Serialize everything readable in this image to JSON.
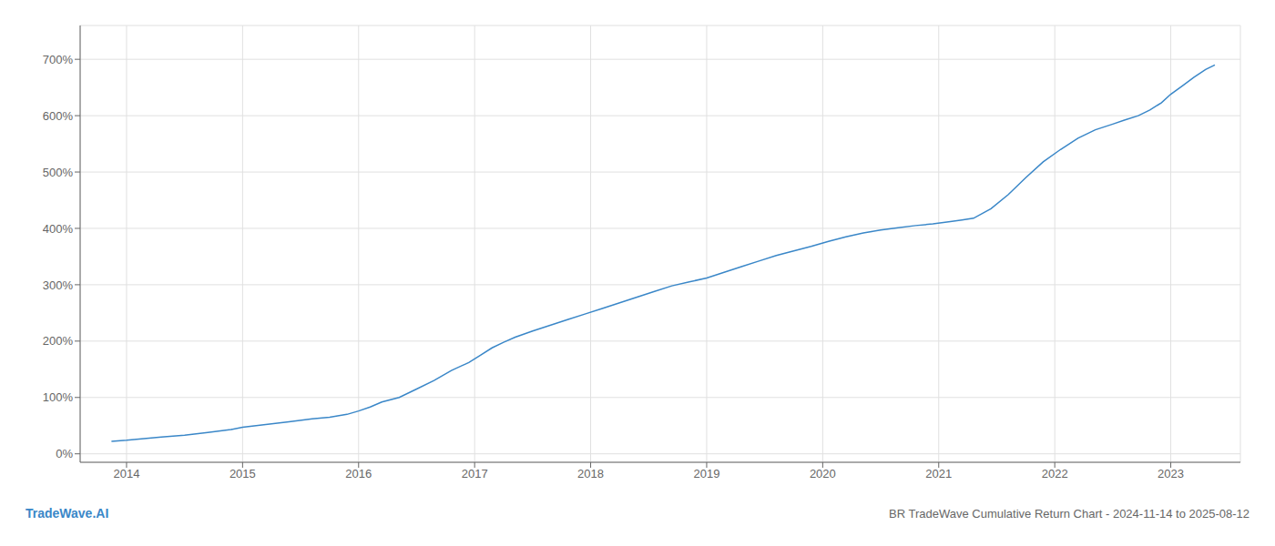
{
  "chart_data": {
    "type": "line",
    "title": "BR TradeWave Cumulative Return Chart - 2024-11-14 to 2025-08-12",
    "annotations": [
      {
        "text": "TradeWave.AI",
        "color": "#3a87c8"
      }
    ],
    "color": "#3a87c8",
    "grid": true,
    "xlim": [
      2013.6,
      2023.6
    ],
    "ylim": [
      -15,
      760
    ],
    "xticks": [
      2014,
      2015,
      2016,
      2017,
      2018,
      2019,
      2020,
      2021,
      2022,
      2023
    ],
    "yticks": [
      {
        "value": 0,
        "label": "0%"
      },
      {
        "value": 100,
        "label": "100%"
      },
      {
        "value": 200,
        "label": "200%"
      },
      {
        "value": 300,
        "label": "300%"
      },
      {
        "value": 400,
        "label": "400%"
      },
      {
        "value": 500,
        "label": "500%"
      },
      {
        "value": 600,
        "label": "600%"
      },
      {
        "value": 700,
        "label": "700%"
      }
    ],
    "x": [
      2013.87,
      2014.0,
      2014.15,
      2014.3,
      2014.5,
      2014.7,
      2014.9,
      2015.0,
      2015.2,
      2015.4,
      2015.6,
      2015.75,
      2015.9,
      2016.0,
      2016.1,
      2016.2,
      2016.35,
      2016.5,
      2016.65,
      2016.8,
      2016.95,
      2017.05,
      2017.15,
      2017.25,
      2017.35,
      2017.5,
      2017.65,
      2017.8,
      2017.95,
      2018.1,
      2018.25,
      2018.4,
      2018.55,
      2018.7,
      2018.85,
      2019.0,
      2019.15,
      2019.3,
      2019.45,
      2019.6,
      2019.75,
      2019.9,
      2020.05,
      2020.2,
      2020.35,
      2020.5,
      2020.65,
      2020.8,
      2020.95,
      2021.1,
      2021.2,
      2021.3,
      2021.45,
      2021.6,
      2021.75,
      2021.9,
      2022.05,
      2022.2,
      2022.35,
      2022.5,
      2022.6,
      2022.72,
      2022.82,
      2022.92,
      2023.0,
      2023.1,
      2023.2,
      2023.3,
      2023.38
    ],
    "values": [
      22,
      24,
      27,
      30,
      33,
      38,
      43,
      47,
      52,
      57,
      62,
      65,
      70,
      76,
      83,
      92,
      100,
      115,
      130,
      148,
      162,
      175,
      188,
      198,
      207,
      218,
      228,
      238,
      248,
      258,
      268,
      278,
      288,
      298,
      305,
      312,
      322,
      332,
      342,
      352,
      360,
      368,
      377,
      385,
      392,
      397,
      401,
      405,
      408,
      412,
      415,
      418,
      435,
      460,
      490,
      518,
      540,
      560,
      575,
      585,
      592,
      600,
      610,
      623,
      638,
      653,
      668,
      682,
      690
    ]
  }
}
